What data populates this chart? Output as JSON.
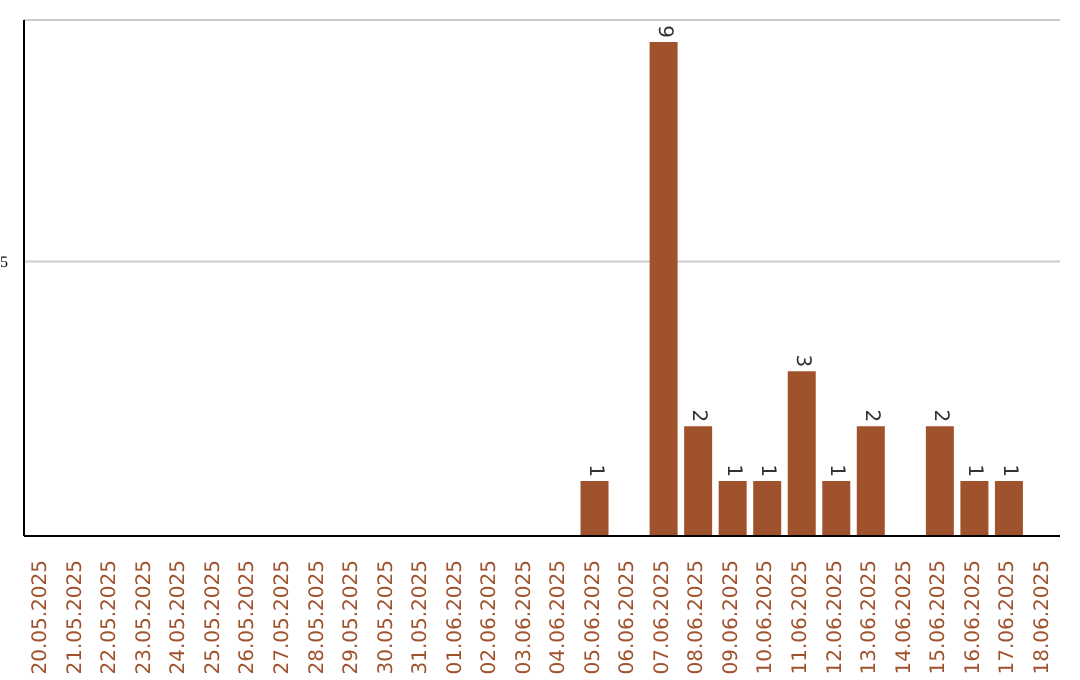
{
  "chart_data": {
    "type": "bar",
    "categories": [
      "20.05.2025",
      "21.05.2025",
      "22.05.2025",
      "23.05.2025",
      "24.05.2025",
      "25.05.2025",
      "26.05.2025",
      "27.05.2025",
      "28.05.2025",
      "29.05.2025",
      "30.05.2025",
      "31.05.2025",
      "01.06.2025",
      "02.06.2025",
      "03.06.2025",
      "04.06.2025",
      "05.06.2025",
      "06.06.2025",
      "07.06.2025",
      "08.06.2025",
      "09.06.2025",
      "10.06.2025",
      "11.06.2025",
      "12.06.2025",
      "13.06.2025",
      "14.06.2025",
      "15.06.2025",
      "16.06.2025",
      "17.06.2025",
      "18.06.2025"
    ],
    "values": [
      null,
      null,
      null,
      null,
      null,
      null,
      null,
      null,
      null,
      null,
      null,
      null,
      null,
      null,
      null,
      null,
      1,
      null,
      9,
      2,
      1,
      1,
      3,
      1,
      2,
      null,
      2,
      1,
      1,
      null
    ],
    "color": "#a0522d",
    "ylim": [
      0,
      9.4
    ],
    "yticks": [
      5
    ],
    "grid": "y",
    "data_labels": true
  }
}
